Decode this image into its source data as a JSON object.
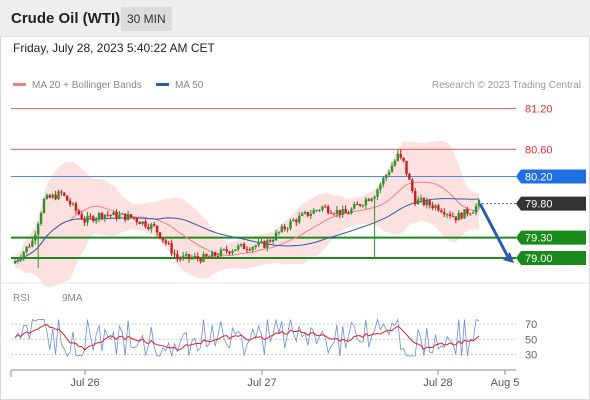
{
  "header": {
    "title": "Crude Oil (WTI)",
    "timeframe": "30 MIN"
  },
  "timestamp": "Friday, July 28, 2023 5:40:22 AM CET",
  "legend": {
    "bollinger": {
      "label": "MA 20 + Bollinger Bands",
      "color": "#f08080"
    },
    "ma50": {
      "label": "MA 50",
      "color": "#2b5ea8"
    }
  },
  "credit": "Research © 2023 Trading Central",
  "rsi_legend": {
    "rsi": {
      "label": "RSI",
      "color": "#6a8fd8"
    },
    "ma9": {
      "label": "9MA",
      "color": "#e02020"
    }
  },
  "chart_data": {
    "type": "candlestick",
    "timeframe": "30 MIN",
    "x_labels": [
      "Jul 26",
      "Jul 27",
      "Jul 28",
      "Aug 5"
    ],
    "price_levels": [
      {
        "value": "81.20",
        "kind": "resistance",
        "color": "#e06060",
        "tagged": false
      },
      {
        "value": "80.60",
        "kind": "resistance",
        "color": "#e06060",
        "tagged": false
      },
      {
        "value": "80.20",
        "kind": "pivot",
        "color": "#1f6fe0",
        "tagged": true
      },
      {
        "value": "79.80",
        "kind": "last",
        "color": "#333333",
        "tagged": true
      },
      {
        "value": "79.30",
        "kind": "support",
        "color": "#1a8a1a",
        "tagged": true
      },
      {
        "value": "79.00",
        "kind": "support",
        "color": "#1a8a1a",
        "tagged": true
      }
    ],
    "price_range": [
      78.75,
      81.4
    ],
    "forecast": {
      "from": 79.8,
      "to": 79.0,
      "direction": "down"
    },
    "series": [
      {
        "name": "MA 20 + Bollinger Bands"
      },
      {
        "name": "MA 50"
      }
    ],
    "rsi": {
      "levels": [
        "70",
        "50",
        "30"
      ],
      "range": [
        20,
        82
      ],
      "series": [
        {
          "name": "RSI"
        },
        {
          "name": "9MA"
        }
      ]
    }
  }
}
